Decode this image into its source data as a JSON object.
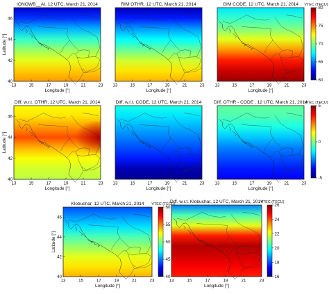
{
  "chart_data": [
    {
      "type": "heatmap",
      "title": "IONOWB__AI, 12 UTC, March 21, 2014",
      "xlabel": "Longitude [°]",
      "ylabel": "Latitude [°]",
      "xlim": [
        13,
        23
      ],
      "ylim": [
        40,
        47
      ],
      "xticks": [
        "13",
        "15",
        "17",
        "19",
        "21",
        "23"
      ],
      "yticks": [
        "40",
        "42",
        "44",
        "46"
      ],
      "colormap": "jet",
      "clim": [
        60,
        80
      ],
      "colorbar": "shared-right",
      "field": {
        "lat": [
          47,
          46,
          45,
          44,
          43,
          42,
          41,
          40
        ],
        "vtec": [
          61.5,
          63.5,
          66,
          68.5,
          70.5,
          72,
          73.5,
          74.5
        ]
      }
    },
    {
      "type": "heatmap",
      "title": "RIM OTHR, 12 UTC, March 21, 2014",
      "xlabel": "Longitude [°]",
      "ylabel": "",
      "xlim": [
        13,
        23
      ],
      "ylim": [
        40,
        47
      ],
      "xticks": [
        "13",
        "15",
        "17",
        "19",
        "21",
        "23"
      ],
      "yticks": [],
      "colormap": "jet",
      "clim": [
        60,
        80
      ],
      "colorbar": "shared-right",
      "field": {
        "lat": [
          47,
          46,
          45,
          44,
          43,
          42,
          41,
          40
        ],
        "vtec": [
          61,
          63,
          65.5,
          67.5,
          69.5,
          71.5,
          73,
          74
        ]
      }
    },
    {
      "type": "heatmap",
      "title": "GIM CODE, 12 UTC, March 21, 2014",
      "xlabel": "Longitude [°]",
      "ylabel": "",
      "xlim": [
        13,
        23
      ],
      "ylim": [
        40,
        47
      ],
      "xticks": [
        "13",
        "15",
        "17",
        "19",
        "21",
        "23"
      ],
      "yticks": [],
      "colormap": "jet",
      "clim": [
        60,
        80
      ],
      "colorbar": {
        "label": "VTEC (TECU)",
        "ticks": [
          "60",
          "65",
          "70",
          "75",
          "80"
        ]
      },
      "field": {
        "lat": [
          47,
          46,
          45,
          44,
          43,
          42,
          41,
          40
        ],
        "vtec": [
          67,
          68.5,
          70,
          72,
          74.5,
          77,
          78.5,
          79.5
        ]
      }
    },
    {
      "type": "heatmap",
      "title": "Diff. w.r.t. OTHR, 12 UTC, March 21, 2014",
      "xlabel": "Longitude [°]",
      "ylabel": "Latitude [°]",
      "xlim": [
        13,
        23
      ],
      "ylim": [
        40,
        47
      ],
      "xticks": [
        "13",
        "15",
        "17",
        "19",
        "21",
        "23"
      ],
      "yticks": [
        "40",
        "42",
        "44",
        "46"
      ],
      "colormap": "jet",
      "clim": [
        -5,
        5
      ],
      "colorbar": "shared-right",
      "field": {
        "lat": [
          47,
          46,
          45,
          44,
          43,
          42,
          41,
          40
        ],
        "vtec": [
          1.2,
          1.5,
          2.2,
          3,
          2,
          1.2,
          0.8,
          0.6
        ],
        "east_edge_lat44": 4.5
      }
    },
    {
      "type": "heatmap",
      "title": "Diff. w.r.t. CODE, 12 UTC, March 21, 2014",
      "xlabel": "Longitude [°]",
      "ylabel": "",
      "xlim": [
        13,
        23
      ],
      "ylim": [
        40,
        47
      ],
      "xticks": [
        "13",
        "15",
        "17",
        "19",
        "21",
        "23"
      ],
      "yticks": [],
      "colormap": "jet",
      "clim": [
        -5,
        5
      ],
      "colorbar": "shared-right",
      "field": {
        "lat": [
          47,
          46,
          45,
          44,
          43,
          42,
          41,
          40
        ],
        "vtec": [
          -1,
          -1.5,
          -2,
          -2.5,
          -3,
          -3.5,
          -4.5,
          -4.8
        ]
      }
    },
    {
      "type": "heatmap",
      "title": "Diff. OTHR - CODE , 12 UTC, March 21, 2014",
      "xlabel": "Longitude [°]",
      "ylabel": "",
      "xlim": [
        13,
        23
      ],
      "ylim": [
        40,
        47
      ],
      "xticks": [
        "13",
        "15",
        "17",
        "19",
        "21",
        "23"
      ],
      "yticks": [],
      "colormap": "jet",
      "clim": [
        -5,
        5
      ],
      "colorbar": {
        "label": "VTEC (TECU)",
        "ticks": [
          "5",
          "0",
          "-5"
        ]
      },
      "field": {
        "lat": [
          47,
          46,
          45,
          44,
          43,
          42,
          41,
          40
        ],
        "vtec": [
          -0.3,
          -0.5,
          -1,
          -1.8,
          -2.5,
          -3,
          -3.5,
          -3.8
        ]
      }
    },
    {
      "type": "heatmap",
      "title": "Klobuchar, 12 UTC, March 21, 2014",
      "xlabel": "Longitude [°]",
      "ylabel": "Latitude [°]",
      "xlim": [
        13,
        23
      ],
      "ylim": [
        40,
        47
      ],
      "xticks": [
        "13",
        "15",
        "17",
        "19",
        "21",
        "23"
      ],
      "yticks": [
        "40",
        "42",
        "44",
        "46"
      ],
      "colormap": "jet",
      "clim": [
        40,
        60
      ],
      "colorbar": {
        "label": "VTEC (TECU)",
        "ticks": [
          "60",
          "55",
          "50",
          "45",
          "40"
        ]
      },
      "field": {
        "lat": [
          47,
          46,
          45,
          44,
          43,
          42,
          41,
          40
        ],
        "vtec": [
          44,
          45.5,
          47,
          49,
          50.5,
          52,
          53,
          54
        ]
      }
    },
    {
      "type": "heatmap",
      "title": "Diff. w.r.t. Klobuchar, 12 UTC, March 21, 2014",
      "xlabel": "Longitude [°]",
      "ylabel": "",
      "xlim": [
        13,
        23
      ],
      "ylim": [
        40,
        47
      ],
      "xticks": [
        "13",
        "15",
        "17",
        "19",
        "21",
        "23"
      ],
      "yticks": [],
      "colormap": "jet",
      "clim": [
        16,
        26
      ],
      "colorbar": {
        "label": "VTEC (TECU)",
        "ticks": [
          "26",
          "24",
          "22",
          "20",
          "18",
          "16"
        ]
      },
      "field": {
        "lat": [
          47,
          46,
          45,
          44,
          43,
          42,
          41,
          40
        ],
        "vtec": [
          18.5,
          20.5,
          22,
          24.5,
          25.5,
          25.2,
          24.8,
          24.5
        ]
      }
    }
  ]
}
